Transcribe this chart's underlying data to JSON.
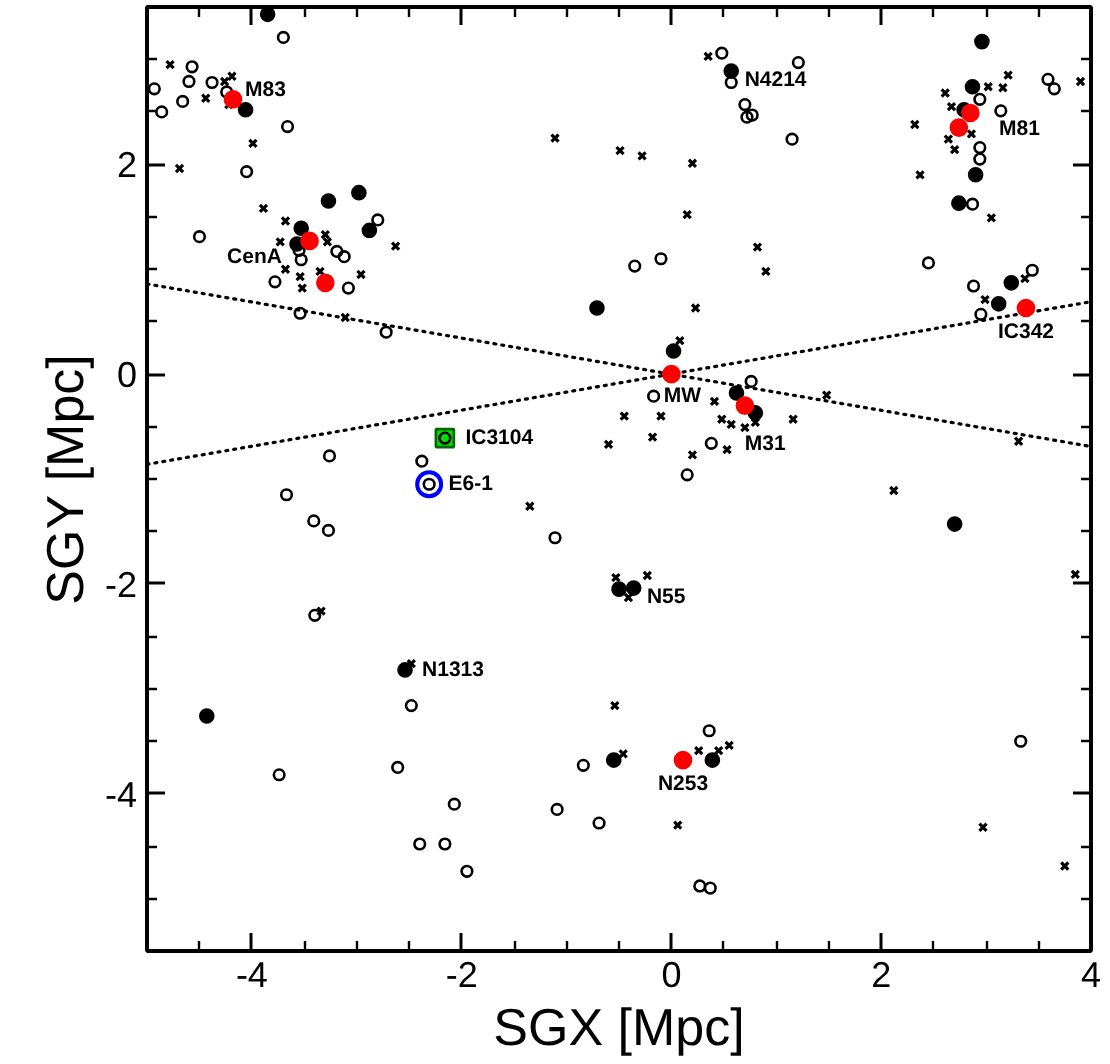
{
  "chart_data": {
    "type": "scatter",
    "xlabel": "SGX [Mpc]",
    "ylabel": "SGY [Mpc]",
    "xlim": [
      -5,
      4
    ],
    "ylim": [
      -5.5,
      3.5
    ],
    "xticks": [
      {
        "value": -4.5,
        "label": null
      },
      -4,
      {
        "value": -3.5,
        "label": null
      },
      {
        "value": -3,
        "label": null
      },
      {
        "value": -2.5,
        "label": null
      },
      -2,
      {
        "value": -1.5,
        "label": null
      },
      {
        "value": -1,
        "label": null
      },
      {
        "value": -0.5,
        "label": null
      },
      0,
      {
        "value": 0.5,
        "label": null
      },
      {
        "value": 1,
        "label": null
      },
      {
        "value": 1.5,
        "label": null
      },
      2,
      {
        "value": 2.5,
        "label": null
      },
      {
        "value": 3,
        "label": null
      },
      {
        "value": 3.5,
        "label": null
      },
      4
    ],
    "yticks": [
      {
        "value": -5,
        "label": null
      },
      {
        "value": -4.5,
        "label": null
      },
      -4,
      {
        "value": -3.5,
        "label": null
      },
      {
        "value": -3,
        "label": null
      },
      {
        "value": -2.5,
        "label": null
      },
      -2,
      {
        "value": -1.5,
        "label": null
      },
      {
        "value": -1,
        "label": null
      },
      {
        "value": -0.5,
        "label": null
      },
      0,
      {
        "value": 0.5,
        "label": null
      },
      {
        "value": 1,
        "label": null
      },
      {
        "value": 1.5,
        "label": null
      },
      2,
      {
        "value": 2.5,
        "label": null
      },
      {
        "value": 3,
        "label": null
      }
    ],
    "series": [
      {
        "type": "line",
        "color": "#000000",
        "line_style": "dotted",
        "marker": "none",
        "x": [
          -5,
          4
        ],
        "values": [
          0.86,
          -0.69
        ]
      },
      {
        "type": "line",
        "color": "#000000",
        "line_style": "dotted",
        "marker": "none",
        "x": [
          -5,
          4
        ],
        "values": [
          -0.86,
          0.69
        ]
      },
      {
        "marker": "square",
        "color": "#00dd00",
        "x": [
          -2.16
        ],
        "values": [
          -0.61
        ]
      },
      {
        "marker": "circle_open",
        "color": "#0000ff",
        "x": [
          -2.31
        ],
        "values": [
          -1.05
        ]
      },
      {
        "marker": "circle_open",
        "color": "#000000",
        "x": [
          -4.93,
          -4.86,
          -4.66,
          -4.6,
          -4.57,
          -4.38,
          -4.24,
          -3.7,
          -3.66,
          -4.05,
          -4.5,
          -2.8,
          -3.19,
          -3.12,
          -3.55,
          -3.53,
          -3.78,
          -3.08,
          -3.54,
          -2.72,
          -3.26,
          -2.38,
          -2.16,
          -2.31,
          0.48,
          0.57,
          0.7,
          0.72,
          0.77,
          -0.35,
          -0.1,
          -0.17,
          0.38,
          0.15,
          0.76,
          1.21,
          1.15,
          3.59,
          3.65,
          2.94,
          3.14,
          2.94,
          2.94,
          2.87,
          2.45,
          2.88,
          3.44,
          2.95,
          -3.67,
          -3.41,
          -3.27,
          -3.4,
          -2.48,
          -2.61,
          -3.74,
          -2.07,
          -2.4,
          -2.16,
          -1.11,
          -0.84,
          0.36,
          -1.09,
          -0.69,
          -1.95,
          0.27,
          0.37,
          3.33
        ],
        "values": [
          2.72,
          2.5,
          2.6,
          2.79,
          2.93,
          2.78,
          2.69,
          3.21,
          2.36,
          1.93,
          1.31,
          1.47,
          1.17,
          1.12,
          1.18,
          1.09,
          0.88,
          0.82,
          0.58,
          0.4,
          -0.78,
          -0.83,
          -0.61,
          -1.05,
          3.06,
          2.78,
          2.57,
          2.45,
          2.47,
          1.03,
          1.1,
          -0.21,
          -0.66,
          -0.96,
          -0.07,
          2.97,
          2.24,
          2.81,
          2.72,
          2.62,
          2.51,
          2.16,
          2.05,
          1.62,
          1.06,
          0.84,
          0.99,
          0.57,
          -1.15,
          -1.4,
          -1.49,
          -2.3,
          -3.16,
          -3.75,
          -3.82,
          -4.1,
          -4.48,
          -4.48,
          -1.56,
          -3.73,
          -3.4,
          -4.15,
          -4.28,
          -4.74,
          -4.88,
          -4.9,
          -3.5
        ]
      },
      {
        "marker": "circle",
        "color": "#000000",
        "x": [
          -3.85,
          -4.06,
          -3.27,
          -2.98,
          -2.88,
          -3.53,
          -3.57,
          0.57,
          -0.71,
          0.02,
          0.62,
          0.8,
          2.96,
          2.87,
          2.79,
          2.9,
          2.74,
          3.24,
          3.12,
          -2.54,
          -4.43,
          -0.5,
          -0.36,
          -0.55,
          0.39,
          2.7
        ],
        "values": [
          3.43,
          2.52,
          1.65,
          1.73,
          1.37,
          1.39,
          1.24,
          2.89,
          0.63,
          0.22,
          -0.18,
          -0.37,
          3.17,
          2.74,
          2.52,
          1.9,
          1.63,
          0.87,
          0.67,
          -2.82,
          -3.26,
          -2.05,
          -2.04,
          -3.68,
          -3.68,
          -1.43
        ]
      },
      {
        "marker": "cross",
        "color": "#000000",
        "x": [
          -4.78,
          -4.26,
          -4.19,
          -4.44,
          -4.22,
          -3.99,
          -4.69,
          -3.89,
          -2.63,
          -3.68,
          -3.73,
          -3.3,
          -3.28,
          -3.68,
          -3.54,
          -3.35,
          -3.52,
          -2.96,
          -3.11,
          0.35,
          -1.11,
          -0.49,
          -0.28,
          0.2,
          0.15,
          0.82,
          0.9,
          0.23,
          0.08,
          -0.45,
          -0.1,
          -0.6,
          -0.18,
          0.53,
          0.2,
          0.41,
          0.48,
          0.57,
          0.8,
          0.7,
          3.21,
          3.9,
          2.64,
          2.7,
          2.86,
          2.32,
          2.37,
          3.05,
          3.37,
          2.99,
          1.48,
          1.16,
          3.31,
          3.02,
          3.16,
          2.61,
          2.67,
          -3.34,
          -2.48,
          -1.35,
          -0.53,
          -0.41,
          -0.23,
          -0.54,
          -0.46,
          0.26,
          0.45,
          0.55,
          0.06,
          2.12,
          3.85,
          2.97,
          3.75
        ],
        "values": [
          2.95,
          2.79,
          2.84,
          2.63,
          2.57,
          2.2,
          1.96,
          1.58,
          1.22,
          1.46,
          1.26,
          1.33,
          1.26,
          1.0,
          0.93,
          0.98,
          0.82,
          0.95,
          0.54,
          3.03,
          2.25,
          2.13,
          2.08,
          2.01,
          1.52,
          1.21,
          0.98,
          0.63,
          0.32,
          -0.4,
          -0.4,
          -0.67,
          -0.6,
          -0.72,
          -0.77,
          -0.26,
          -0.43,
          -0.48,
          -0.46,
          -0.51,
          2.85,
          2.79,
          2.24,
          2.14,
          2.29,
          2.38,
          1.9,
          1.49,
          0.91,
          0.71,
          -0.2,
          -0.43,
          -0.64,
          2.74,
          2.73,
          2.68,
          2.55,
          -2.26,
          -2.76,
          -1.26,
          -1.94,
          -2.13,
          -1.92,
          -3.16,
          -3.62,
          -3.59,
          -3.59,
          -3.54,
          -4.3,
          -1.11,
          -1.91,
          -4.32,
          -4.69
        ]
      },
      {
        "marker": "circle",
        "color": "#ff0000",
        "x": [
          -4.18,
          -3.45,
          -3.3,
          0.0,
          0.7,
          2.85,
          2.74,
          3.38,
          0.11
        ],
        "values": [
          2.62,
          1.27,
          0.87,
          0.0,
          -0.3,
          2.49,
          2.35,
          0.63,
          -3.68
        ]
      }
    ],
    "annotations": [
      {
        "text": "M83",
        "x": -4.18,
        "y": 2.62
      },
      {
        "text": "CenA",
        "x": -3.45,
        "y": 1.27
      },
      {
        "text": "MW",
        "x": 0.0,
        "y": 0.0
      },
      {
        "text": "M31",
        "x": 0.7,
        "y": -0.3
      },
      {
        "text": "N4214",
        "x": 0.57,
        "y": 2.89
      },
      {
        "text": "M81",
        "x": 2.85,
        "y": 2.49
      },
      {
        "text": "IC342",
        "x": 3.38,
        "y": 0.63
      },
      {
        "text": "IC3104",
        "x": -2.16,
        "y": -0.61
      },
      {
        "text": "E6-1",
        "x": -2.31,
        "y": -1.05
      },
      {
        "text": "N55",
        "x": -0.36,
        "y": -2.04
      },
      {
        "text": "N1313",
        "x": -2.54,
        "y": -2.82
      },
      {
        "text": "N253",
        "x": 0.11,
        "y": -3.68
      }
    ]
  }
}
